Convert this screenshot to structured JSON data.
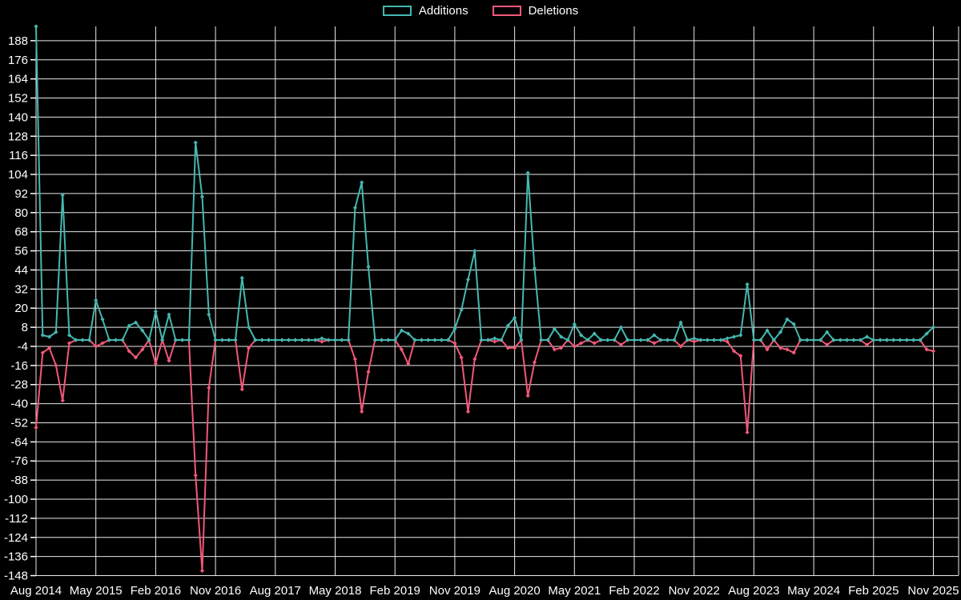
{
  "chart_data": {
    "type": "line",
    "title": "",
    "x_start": "Aug 2014",
    "x_end": "Nov 2025",
    "x_interval": "month",
    "n_points": 136,
    "x_tick_labels": [
      "Aug 2014",
      "May 2015",
      "Feb 2016",
      "Nov 2016",
      "Aug 2017",
      "May 2018",
      "Feb 2019",
      "Nov 2019",
      "Aug 2020",
      "May 2021",
      "Feb 2022",
      "Nov 2022",
      "Aug 2023",
      "May 2024",
      "Feb 2025",
      "Nov 2025"
    ],
    "x_tick_every_n_months": 9,
    "y_ticks": [
      188,
      176,
      164,
      152,
      140,
      128,
      116,
      104,
      92,
      80,
      68,
      56,
      44,
      32,
      20,
      8,
      -4,
      -16,
      -28,
      -40,
      -52,
      -64,
      -76,
      -88,
      -100,
      -112,
      -124,
      -136,
      -148
    ],
    "ylim": [
      -150,
      197
    ],
    "grid": true,
    "legend_position": "top-center",
    "background_color": "#000000",
    "grid_color": "#e8e8e8",
    "text_color": "#ffffff",
    "series": [
      {
        "name": "Additions",
        "color": "#45b8b0",
        "values": [
          197,
          3,
          2,
          5,
          91,
          3,
          0,
          0,
          0,
          25,
          13,
          0,
          0,
          0,
          9,
          11,
          6,
          0,
          18,
          0,
          16,
          0,
          0,
          0,
          124,
          90,
          16,
          0,
          0,
          0,
          0,
          39,
          8,
          0,
          0,
          0,
          0,
          0,
          0,
          0,
          0,
          0,
          0,
          1,
          0,
          0,
          0,
          0,
          83,
          99,
          46,
          0,
          0,
          0,
          0,
          6,
          4,
          0,
          0,
          0,
          0,
          0,
          0,
          7,
          19,
          38,
          56,
          0,
          0,
          1,
          0,
          9,
          14,
          0,
          105,
          45,
          0,
          0,
          7,
          2,
          0,
          10,
          3,
          0,
          4,
          0,
          0,
          0,
          8,
          0,
          0,
          0,
          0,
          3,
          0,
          0,
          0,
          11,
          0,
          1,
          0,
          0,
          0,
          0,
          1,
          2,
          3,
          35,
          0,
          0,
          6,
          0,
          5,
          13,
          10,
          0,
          0,
          0,
          0,
          5,
          0,
          0,
          0,
          0,
          0,
          2,
          0,
          0,
          0,
          0,
          0,
          0,
          0,
          0,
          4,
          8
        ]
      },
      {
        "name": "Deletions",
        "color": "#f25878",
        "values": [
          -55,
          -8,
          -5,
          -16,
          -38,
          -2,
          0,
          0,
          0,
          -4,
          -2,
          0,
          0,
          0,
          -7,
          -11,
          -6,
          0,
          -15,
          0,
          -13,
          0,
          0,
          0,
          -85,
          -145,
          -30,
          0,
          0,
          0,
          0,
          -31,
          -5,
          0,
          0,
          0,
          0,
          0,
          0,
          0,
          0,
          0,
          0,
          -1,
          0,
          0,
          0,
          0,
          -12,
          -45,
          -20,
          0,
          0,
          0,
          0,
          -6,
          -15,
          0,
          0,
          0,
          0,
          0,
          0,
          -2,
          -11,
          -45,
          -12,
          0,
          0,
          -1,
          0,
          -5,
          -5,
          0,
          -35,
          -14,
          0,
          0,
          -6,
          -5,
          0,
          -4,
          -2,
          0,
          -2,
          0,
          0,
          0,
          -3,
          0,
          0,
          0,
          0,
          -2,
          0,
          0,
          0,
          -4,
          0,
          -1,
          0,
          0,
          0,
          0,
          -1,
          -7,
          -10,
          -58,
          0,
          0,
          -6,
          0,
          -5,
          -6,
          -8,
          0,
          0,
          0,
          0,
          -3,
          0,
          0,
          0,
          0,
          0,
          -3,
          0,
          0,
          0,
          0,
          0,
          0,
          0,
          0,
          -6,
          -7
        ]
      }
    ]
  },
  "legend": {
    "additions_label": "Additions",
    "deletions_label": "Deletions"
  }
}
